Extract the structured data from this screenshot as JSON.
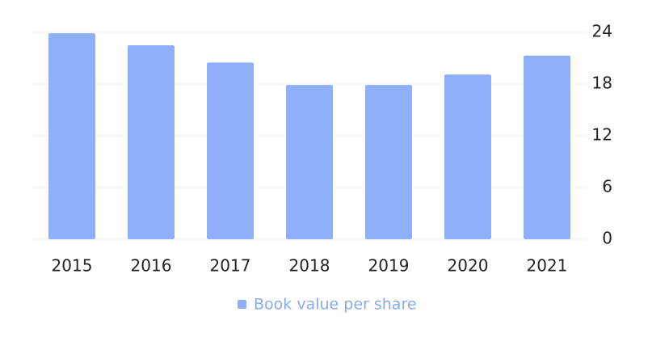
{
  "chart_data": {
    "type": "bar",
    "categories": [
      "2015",
      "2016",
      "2017",
      "2018",
      "2019",
      "2020",
      "2021"
    ],
    "series": [
      {
        "name": "Book value per share",
        "color": "#8fb0f8",
        "values": [
          23.9,
          22.5,
          20.5,
          17.9,
          17.9,
          19.1,
          21.3
        ]
      }
    ],
    "ylim": [
      0,
      24
    ],
    "yticks": [
      0,
      6,
      12,
      18,
      24
    ],
    "grid": true,
    "y_axis_side": "right",
    "legend": "bottom"
  }
}
